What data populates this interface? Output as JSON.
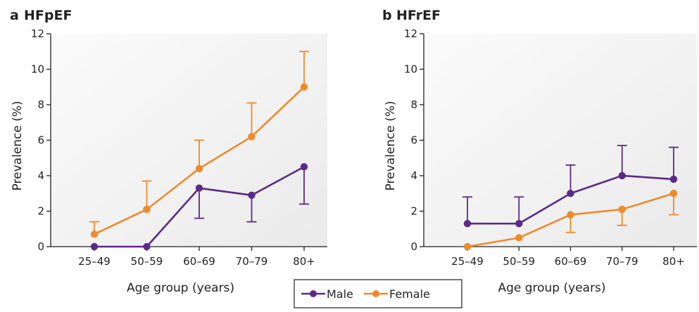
{
  "colors": {
    "male": "#5b2a86",
    "female": "#ee8a2a",
    "axis": "#231f20",
    "panel_bg": "#f3f2f2"
  },
  "legend": {
    "male_label": "Male",
    "female_label": "Female"
  },
  "chart_data": [
    {
      "type": "line",
      "panel_letter": "a",
      "title": "HFpEF",
      "xlabel": "Age group (years)",
      "ylabel": "Prevalence (%)",
      "categories": [
        "25–49",
        "50–59",
        "60–69",
        "70–79",
        "80+"
      ],
      "ylim": [
        0,
        12
      ],
      "yticks": [
        "0",
        "2",
        "4",
        "6",
        "8",
        "10",
        "12"
      ],
      "grid": false,
      "series": [
        {
          "name": "Male",
          "values": [
            0.0,
            0.0,
            3.3,
            2.9,
            4.5
          ],
          "lower": [
            0.0,
            0.0,
            1.6,
            1.4,
            2.4
          ],
          "upper": [
            0.0,
            0.0,
            3.3,
            2.9,
            4.5
          ]
        },
        {
          "name": "Female",
          "values": [
            0.7,
            2.1,
            4.4,
            6.2,
            9.0
          ],
          "lower": [
            0.7,
            2.1,
            4.4,
            6.2,
            9.0
          ],
          "upper": [
            1.4,
            3.7,
            6.0,
            8.1,
            11.0
          ]
        }
      ]
    },
    {
      "type": "line",
      "panel_letter": "b",
      "title": "HFrEF",
      "xlabel": "Age group (years)",
      "ylabel": "Prevalence (%)",
      "categories": [
        "25–49",
        "50–59",
        "60–69",
        "70–79",
        "80+"
      ],
      "ylim": [
        0,
        12
      ],
      "yticks": [
        "0",
        "2",
        "4",
        "6",
        "8",
        "10",
        "12"
      ],
      "grid": false,
      "series": [
        {
          "name": "Male",
          "values": [
            1.3,
            1.3,
            3.0,
            4.0,
            3.8
          ],
          "lower": [
            1.3,
            1.3,
            3.0,
            4.0,
            3.8
          ],
          "upper": [
            2.8,
            2.8,
            4.6,
            5.7,
            5.6
          ]
        },
        {
          "name": "Female",
          "values": [
            0.0,
            0.5,
            1.8,
            2.1,
            3.0
          ],
          "lower": [
            0.0,
            0.5,
            0.8,
            1.2,
            1.8
          ],
          "upper": [
            0.0,
            0.5,
            1.8,
            2.1,
            3.0
          ]
        }
      ]
    }
  ]
}
